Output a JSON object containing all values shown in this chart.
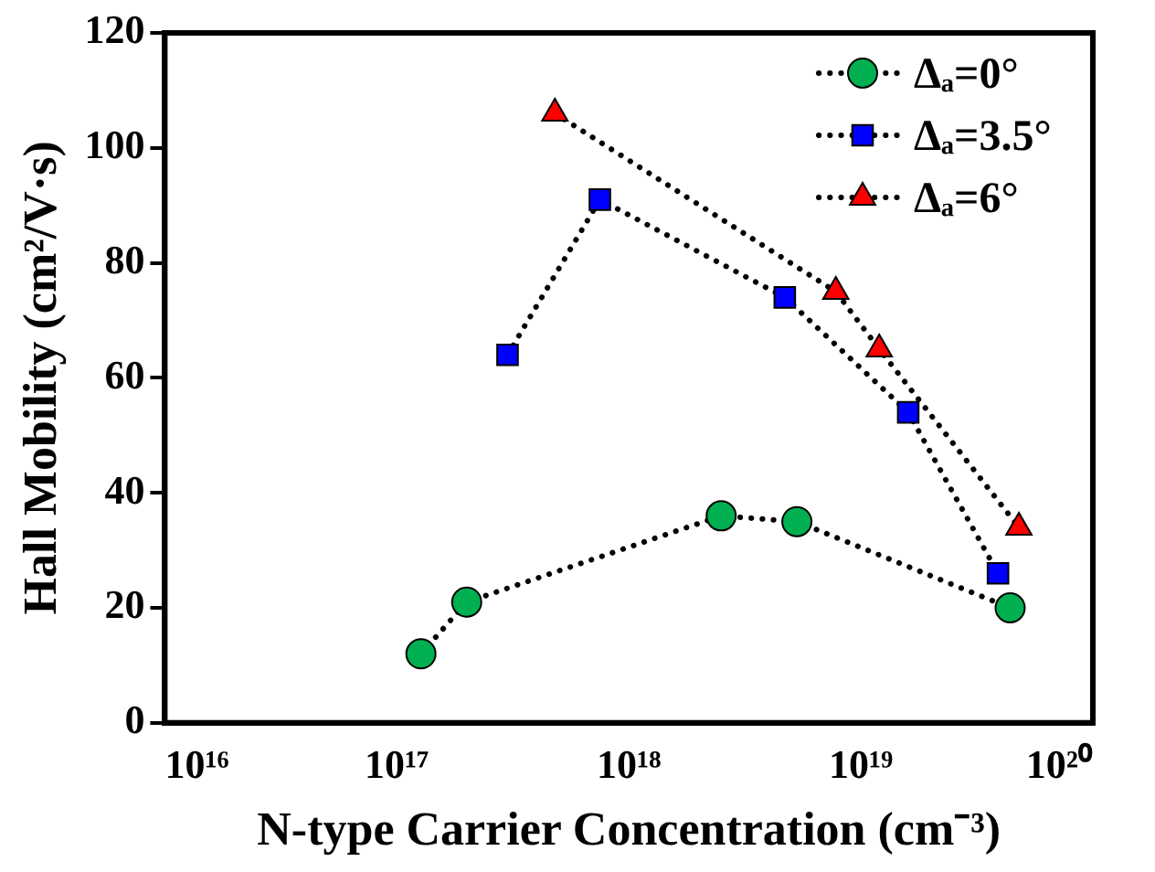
{
  "chart_data": {
    "type": "line",
    "xlabel": "N-type Carrier Concentration (cm⁻³)",
    "ylabel": "Hall Mobility (cm²/V·s)",
    "log": "x",
    "xlim": [
      1e+16,
      1e+20
    ],
    "xticks": [
      {
        "value": 1e+16,
        "label": "10¹⁶"
      },
      {
        "value": 1e+17,
        "label": "10¹⁷"
      },
      {
        "value": 1e+18,
        "label": "10¹⁸"
      },
      {
        "value": 1e+19,
        "label": "10¹⁹"
      },
      {
        "value": 1e+20,
        "label": "10²⁰"
      }
    ],
    "ylim": [
      0,
      120
    ],
    "yticks": [
      0,
      20,
      40,
      60,
      80,
      100,
      120
    ],
    "grid": false,
    "legend": "top right",
    "line_style": "dotted",
    "series": [
      {
        "name": "Δₐ=0°",
        "color": "#00b050",
        "marker": "circle",
        "x": [
          1.27e+17,
          2e+17,
          2.5e+18,
          5.3e+18,
          4.4e+19
        ],
        "values": [
          12,
          21,
          36,
          35,
          20
        ]
      },
      {
        "name": "Δₐ=3.5°",
        "color": "#0000ff",
        "marker": "square",
        "x": [
          3e+17,
          7.5e+17,
          4.7e+18,
          1.6e+19,
          3.9e+19
        ],
        "values": [
          64,
          91,
          74,
          54,
          26
        ]
      },
      {
        "name": "Δₐ=6°",
        "color": "#ff0000",
        "marker": "triangle",
        "x": [
          4.8e+17,
          7.8e+18,
          1.2e+19,
          4.8e+19
        ],
        "values": [
          106,
          75,
          65,
          34
        ]
      }
    ]
  }
}
